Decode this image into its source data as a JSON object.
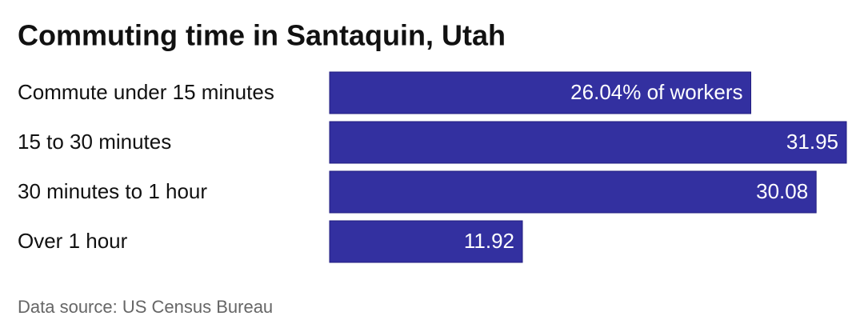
{
  "chart_data": {
    "type": "bar",
    "orientation": "horizontal",
    "title": "Commuting time in Santaquin, Utah",
    "categories": [
      "Commute under 15 minutes",
      "15 to 30 minutes",
      "30 minutes to 1 hour",
      "Over 1 hour"
    ],
    "values": [
      26.04,
      31.95,
      30.08,
      11.92
    ],
    "value_labels": [
      "26.04% of workers",
      "31.95",
      "30.08",
      "11.92"
    ],
    "color": "#3330a0",
    "source": "Data source: US Census Bureau"
  }
}
